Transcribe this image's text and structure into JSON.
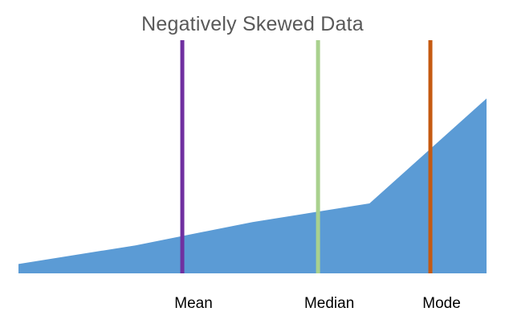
{
  "chart_data": {
    "type": "area",
    "title": "Negatively Skewed Data",
    "xlabel": "",
    "ylabel": "",
    "grid": false,
    "legend": "none",
    "x": [
      0,
      0.25,
      0.5,
      0.75,
      1.0
    ],
    "values": [
      0.04,
      0.12,
      0.22,
      0.3,
      0.75
    ],
    "xlim": [
      0,
      1
    ],
    "ylim": [
      0,
      1
    ],
    "area_color": "#5b9bd5",
    "markers": [
      {
        "label": "Mean",
        "x": 0.35,
        "color": "#7030a0"
      },
      {
        "label": "Median",
        "x": 0.64,
        "color": "#a9d18e"
      },
      {
        "label": "Mode",
        "x": 0.88,
        "color": "#c55a11"
      }
    ]
  }
}
